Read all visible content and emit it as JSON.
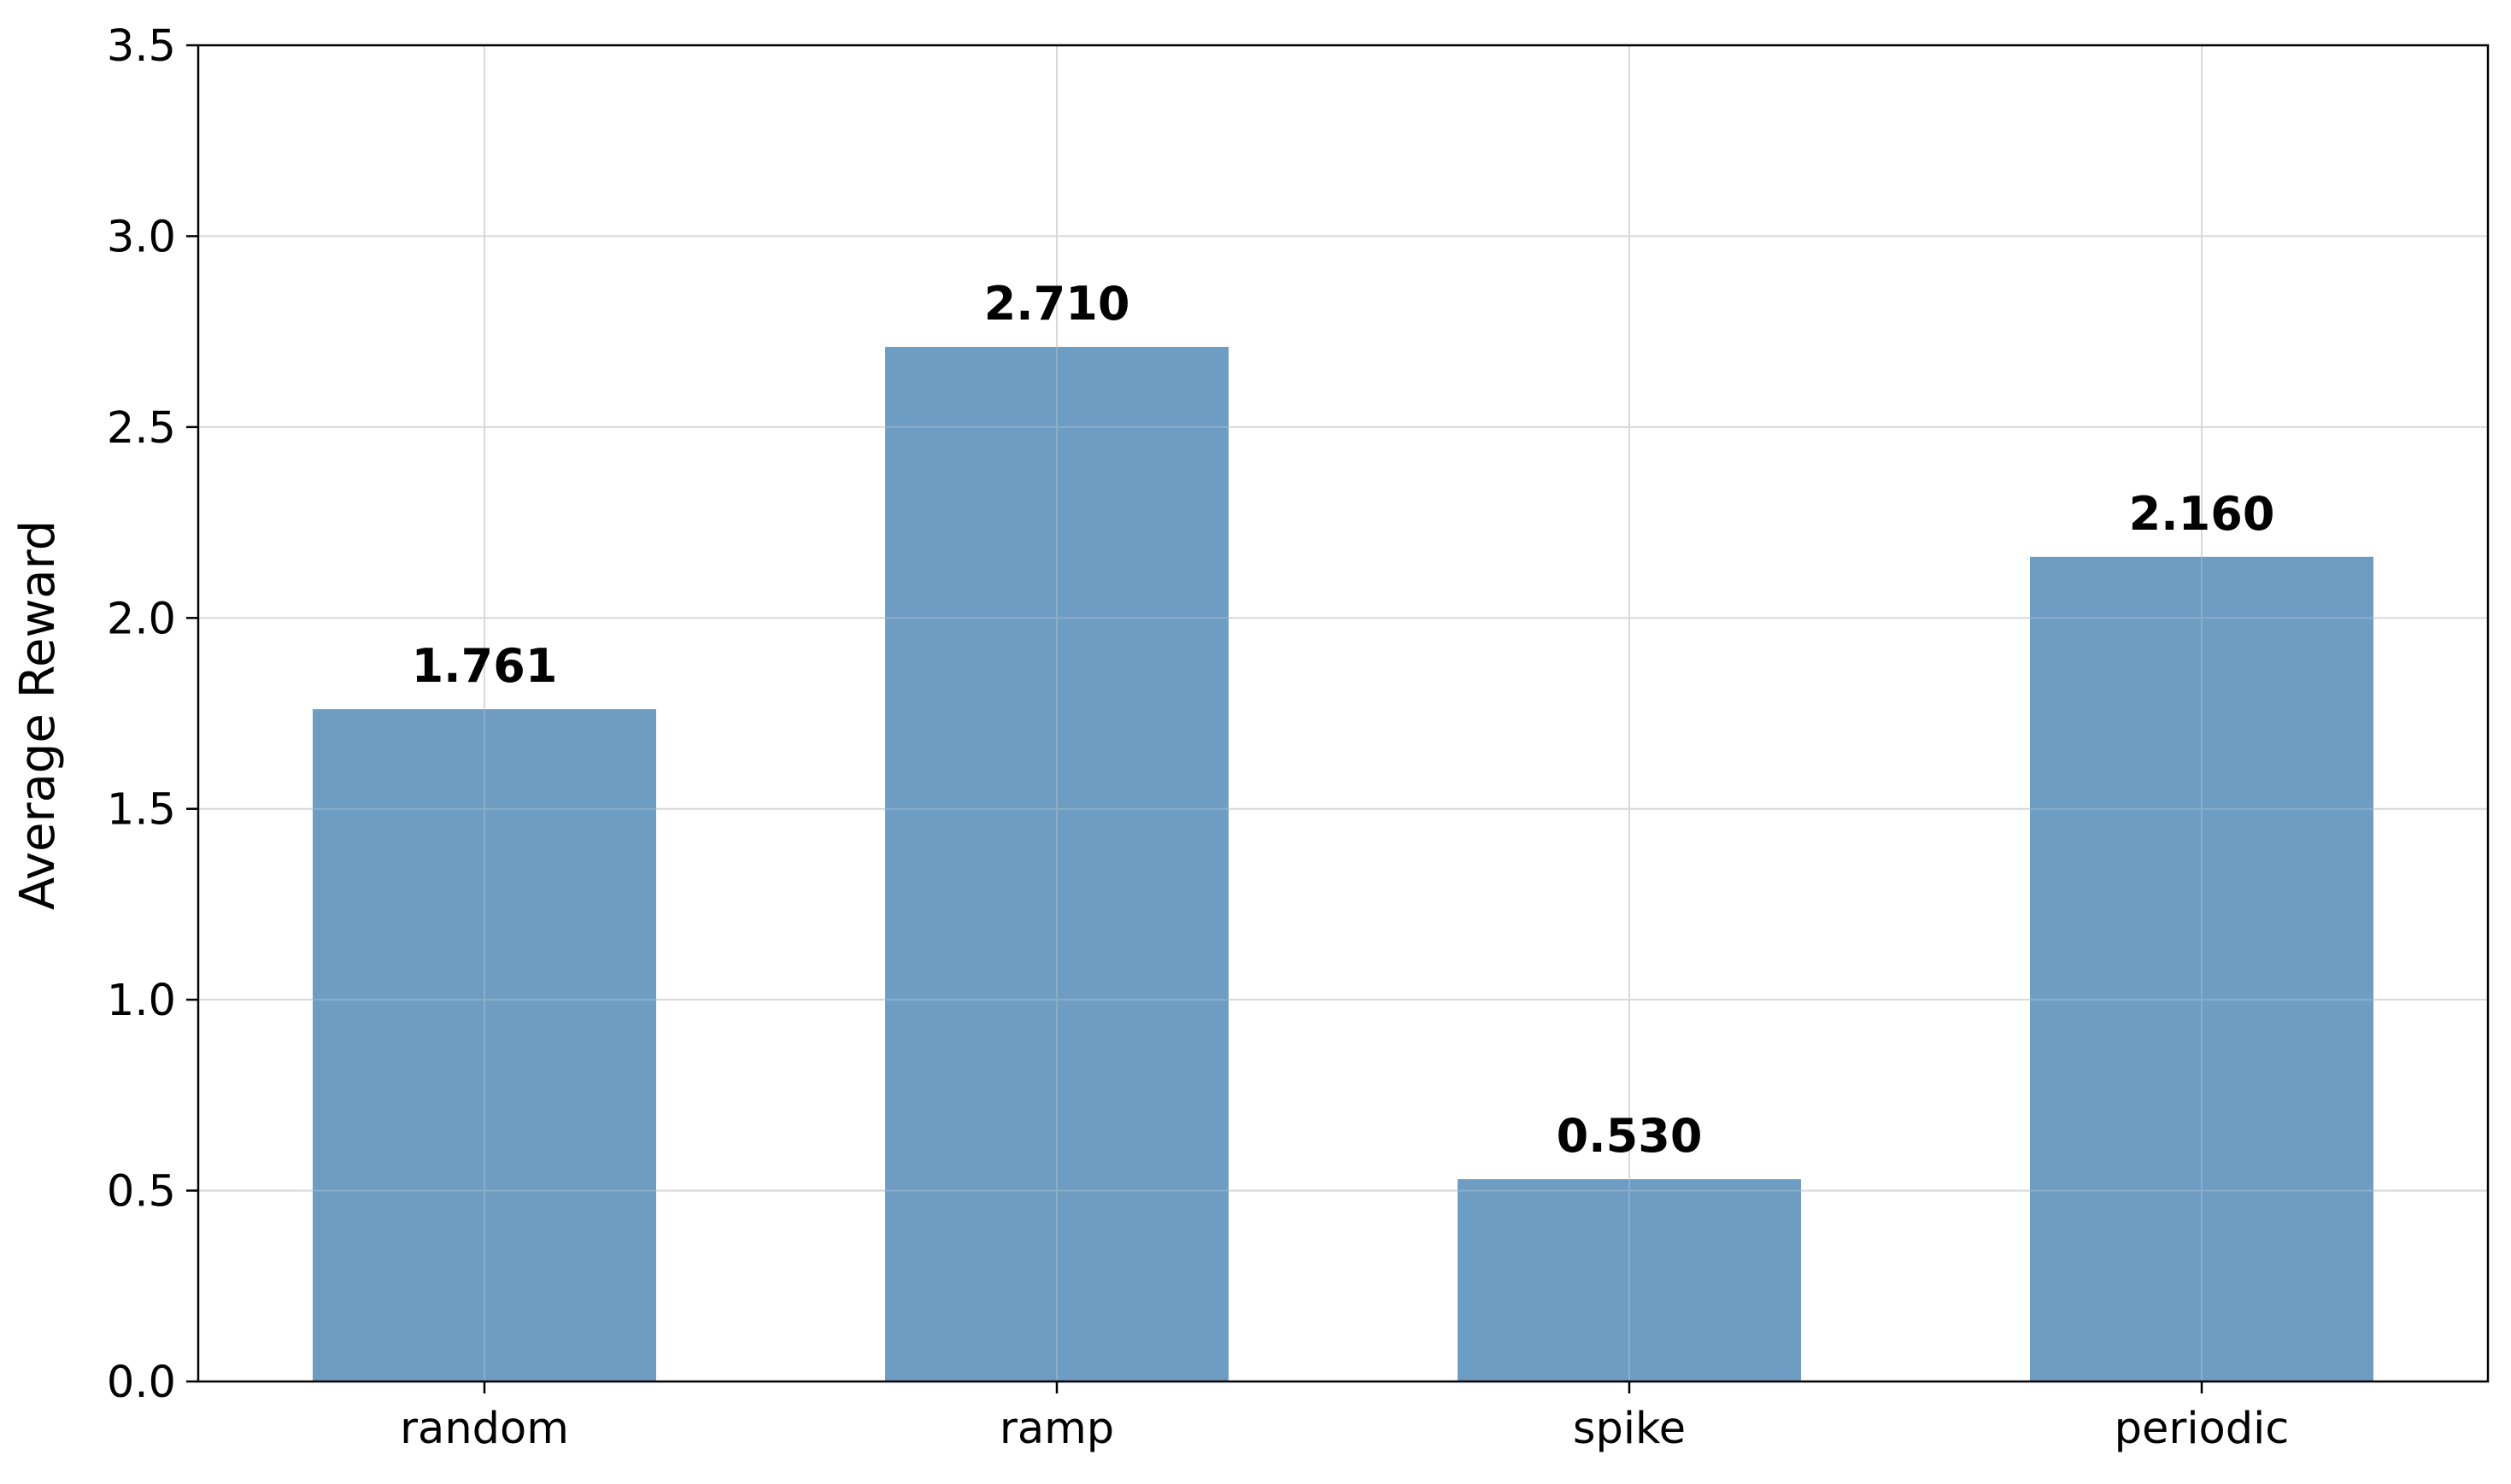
{
  "chart_data": {
    "type": "bar",
    "title": "",
    "xlabel": "",
    "ylabel": "Average Reward",
    "categories": [
      "random",
      "ramp",
      "spike",
      "periodic"
    ],
    "values": [
      1.761,
      2.71,
      0.53,
      2.16
    ],
    "value_labels": [
      "1.761",
      "2.710",
      "0.530",
      "2.160"
    ],
    "ylim": [
      0,
      3.5
    ],
    "yticks": [
      0.0,
      0.5,
      1.0,
      1.5,
      2.0,
      2.5,
      3.0,
      3.5
    ],
    "ytick_labels": [
      "0.0",
      "0.5",
      "1.0",
      "1.5",
      "2.0",
      "2.5",
      "3.0",
      "3.5"
    ],
    "grid": true,
    "legend": "none",
    "bar_color": "#6b9bc3",
    "grid_color": "#e3e3e3",
    "axis_color": "#000000"
  }
}
